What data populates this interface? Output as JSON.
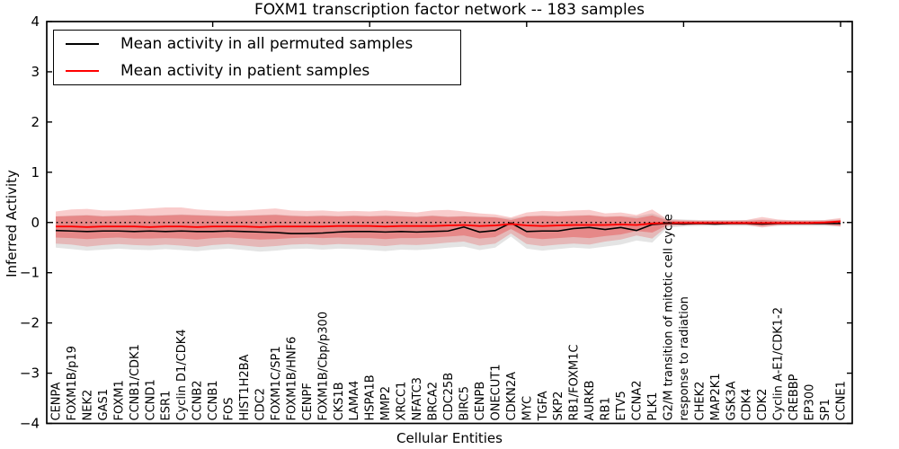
{
  "figure": {
    "title": "FOXM1 transcription factor network -- 183 samples",
    "xlabel": "Cellular Entities",
    "ylabel": "Inferred Activity"
  },
  "legend": {
    "items": [
      {
        "label": "Mean activity in all permuted samples",
        "color": "#000000"
      },
      {
        "label": "Mean activity in patient samples",
        "color": "#ff0000"
      }
    ]
  },
  "chart_data": {
    "type": "line",
    "title": "FOXM1 transcription factor network -- 183 samples",
    "xlabel": "Cellular Entities",
    "ylabel": "Inferred Activity",
    "ylim": [
      -4,
      4
    ],
    "yticks": [
      4,
      3,
      2,
      1,
      0,
      -1,
      -2,
      -3,
      -4
    ],
    "grid": false,
    "zero_line_style": "dotted",
    "legend_position": "upper-left",
    "colors": {
      "permuted": "#000000",
      "patient": "#ff0000",
      "gray_band": "#aaaaaa",
      "red_band": "#e83434"
    },
    "categories": [
      "CENPA",
      "FOXM1B/p19",
      "NEK2",
      "GAS1",
      "FOXM1",
      "CCNB1/CDK1",
      "CCND1",
      "ESR1",
      "Cyclin D1/CDK4",
      "CCNB2",
      "CCNB1",
      "FOS",
      "HIST1H2BA",
      "CDC2",
      "FOXM1C/SP1",
      "FOXM1B/HNF6",
      "CENPF",
      "FOXM1B/Cbp/p300",
      "CKS1B",
      "LAMA4",
      "HSPA1B",
      "MMP2",
      "XRCC1",
      "NFATC3",
      "BRCA2",
      "CDC25B",
      "BIRC5",
      "CENPB",
      "ONECUT1",
      "CDKN2A",
      "MYC",
      "TGFA",
      "SKP2",
      "RB1/FOXM1C",
      "AURKB",
      "RB1",
      "ETV5",
      "CCNA2",
      "PLK1",
      "G2/M transition of mitotic cell cycle",
      "response to radiation",
      "CHEK2",
      "MAP2K1",
      "GSK3A",
      "CDK4",
      "CDK2",
      "Cyclin A-E1/CDK1-2",
      "CREBBP",
      "EP300",
      "SP1",
      "CCNE1"
    ],
    "series": [
      {
        "name": "Mean activity in all permuted samples",
        "color": "#000000",
        "values": [
          -0.16,
          -0.17,
          -0.18,
          -0.17,
          -0.17,
          -0.18,
          -0.17,
          -0.18,
          -0.17,
          -0.18,
          -0.18,
          -0.17,
          -0.18,
          -0.19,
          -0.2,
          -0.22,
          -0.22,
          -0.21,
          -0.19,
          -0.18,
          -0.18,
          -0.19,
          -0.18,
          -0.19,
          -0.18,
          -0.17,
          -0.09,
          -0.19,
          -0.16,
          -0.01,
          -0.18,
          -0.17,
          -0.17,
          -0.12,
          -0.1,
          -0.14,
          -0.1,
          -0.16,
          -0.04,
          -0.02,
          -0.03,
          -0.02,
          -0.03,
          -0.02,
          -0.02,
          -0.03,
          -0.02,
          -0.02,
          -0.02,
          -0.02,
          -0.02
        ]
      },
      {
        "name": "Mean activity in patient samples",
        "color": "#ff0000",
        "values": [
          -0.08,
          -0.08,
          -0.09,
          -0.08,
          -0.08,
          -0.08,
          -0.09,
          -0.08,
          -0.08,
          -0.09,
          -0.08,
          -0.08,
          -0.08,
          -0.09,
          -0.08,
          -0.08,
          -0.08,
          -0.08,
          -0.07,
          -0.07,
          -0.07,
          -0.08,
          -0.07,
          -0.07,
          -0.07,
          -0.06,
          -0.05,
          -0.07,
          -0.06,
          -0.03,
          -0.06,
          -0.07,
          -0.06,
          -0.05,
          -0.05,
          -0.05,
          -0.04,
          -0.05,
          -0.02,
          -0.01,
          -0.01,
          -0.01,
          -0.01,
          -0.01,
          -0.01,
          -0.01,
          -0.01,
          -0.01,
          -0.01,
          0.0,
          0.02
        ]
      }
    ],
    "bands": [
      {
        "name": "permuted-samples-range",
        "color": "#aaaaaa",
        "opacity": 0.32,
        "upper": [
          0.12,
          0.14,
          0.15,
          0.13,
          0.14,
          0.15,
          0.14,
          0.15,
          0.16,
          0.15,
          0.14,
          0.13,
          0.14,
          0.15,
          0.16,
          0.14,
          0.13,
          0.14,
          0.13,
          0.14,
          0.13,
          0.14,
          0.13,
          0.12,
          0.14,
          0.12,
          0.13,
          0.12,
          0.11,
          0.08,
          0.13,
          0.14,
          0.13,
          0.14,
          0.15,
          0.12,
          0.13,
          0.12,
          0.18,
          0.07,
          0.06,
          0.05,
          0.05,
          0.05,
          0.05,
          0.06,
          0.05,
          0.05,
          0.05,
          0.05,
          0.06
        ],
        "lower": [
          -0.5,
          -0.53,
          -0.56,
          -0.54,
          -0.52,
          -0.54,
          -0.55,
          -0.53,
          -0.55,
          -0.57,
          -0.54,
          -0.52,
          -0.55,
          -0.58,
          -0.56,
          -0.53,
          -0.52,
          -0.54,
          -0.52,
          -0.53,
          -0.55,
          -0.57,
          -0.54,
          -0.55,
          -0.53,
          -0.5,
          -0.48,
          -0.55,
          -0.5,
          -0.28,
          -0.52,
          -0.56,
          -0.53,
          -0.5,
          -0.52,
          -0.48,
          -0.44,
          -0.36,
          -0.4,
          -0.1,
          -0.08,
          -0.07,
          -0.07,
          -0.07,
          -0.07,
          -0.08,
          -0.07,
          -0.07,
          -0.07,
          -0.07,
          -0.08
        ]
      },
      {
        "name": "patient-samples-range-outer",
        "color": "#e83434",
        "opacity": 0.25,
        "upper": [
          0.22,
          0.26,
          0.27,
          0.24,
          0.24,
          0.26,
          0.28,
          0.3,
          0.3,
          0.26,
          0.24,
          0.23,
          0.24,
          0.26,
          0.28,
          0.24,
          0.23,
          0.24,
          0.22,
          0.23,
          0.22,
          0.24,
          0.22,
          0.2,
          0.24,
          0.25,
          0.22,
          0.18,
          0.16,
          0.1,
          0.2,
          0.23,
          0.22,
          0.24,
          0.25,
          0.18,
          0.2,
          0.15,
          0.26,
          0.06,
          0.05,
          0.04,
          0.04,
          0.04,
          0.05,
          0.11,
          0.06,
          0.04,
          0.04,
          0.05,
          0.09
        ],
        "lower": [
          -0.42,
          -0.44,
          -0.48,
          -0.45,
          -0.43,
          -0.45,
          -0.46,
          -0.44,
          -0.46,
          -0.49,
          -0.45,
          -0.43,
          -0.46,
          -0.49,
          -0.47,
          -0.44,
          -0.43,
          -0.45,
          -0.43,
          -0.44,
          -0.45,
          -0.47,
          -0.44,
          -0.45,
          -0.43,
          -0.4,
          -0.38,
          -0.46,
          -0.42,
          -0.22,
          -0.43,
          -0.47,
          -0.44,
          -0.42,
          -0.44,
          -0.38,
          -0.34,
          -0.26,
          -0.32,
          -0.07,
          -0.06,
          -0.05,
          -0.05,
          -0.05,
          -0.05,
          -0.1,
          -0.06,
          -0.05,
          -0.05,
          -0.05,
          -0.08
        ]
      },
      {
        "name": "patient-samples-range-inner",
        "color": "#e83434",
        "opacity": 0.36,
        "upper": [
          0.12,
          0.13,
          0.14,
          0.12,
          0.13,
          0.14,
          0.13,
          0.14,
          0.15,
          0.14,
          0.13,
          0.12,
          0.13,
          0.14,
          0.15,
          0.13,
          0.12,
          0.13,
          0.12,
          0.13,
          0.12,
          0.13,
          0.12,
          0.11,
          0.13,
          0.11,
          0.12,
          0.11,
          0.1,
          0.05,
          0.12,
          0.13,
          0.12,
          0.13,
          0.14,
          0.11,
          0.12,
          0.08,
          0.14,
          0.04,
          0.03,
          0.03,
          0.03,
          0.03,
          0.03,
          0.05,
          0.03,
          0.03,
          0.03,
          0.03,
          0.05
        ],
        "lower": [
          -0.3,
          -0.31,
          -0.33,
          -0.31,
          -0.3,
          -0.32,
          -0.32,
          -0.31,
          -0.32,
          -0.34,
          -0.31,
          -0.3,
          -0.32,
          -0.34,
          -0.33,
          -0.31,
          -0.3,
          -0.31,
          -0.3,
          -0.31,
          -0.31,
          -0.33,
          -0.31,
          -0.31,
          -0.3,
          -0.28,
          -0.26,
          -0.32,
          -0.29,
          -0.13,
          -0.3,
          -0.33,
          -0.31,
          -0.29,
          -0.31,
          -0.27,
          -0.24,
          -0.17,
          -0.2,
          -0.05,
          -0.04,
          -0.04,
          -0.04,
          -0.04,
          -0.04,
          -0.07,
          -0.04,
          -0.04,
          -0.04,
          -0.04,
          -0.06
        ]
      }
    ]
  }
}
